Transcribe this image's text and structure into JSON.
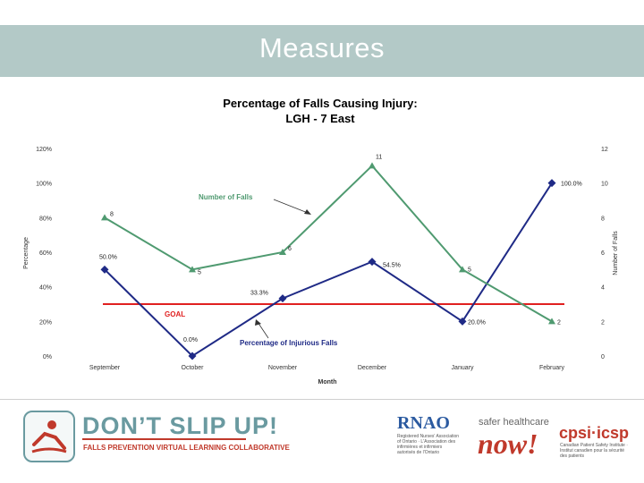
{
  "slide": {
    "title": "Measures"
  },
  "chart_data": {
    "type": "line",
    "title": "Percentage of Falls Causing Injury: LGH - 7 East",
    "title_lines": [
      "Percentage of Falls Causing Injury:",
      "LGH - 7 East"
    ],
    "xlabel": "Month",
    "ylabel_left": "Percentage",
    "ylabel_right": "Number of Falls",
    "categories": [
      "September",
      "October",
      "November",
      "December",
      "January",
      "February"
    ],
    "left_axis": {
      "ticks": [
        "0%",
        "20%",
        "40%",
        "60%",
        "80%",
        "100%",
        "120%"
      ],
      "range": [
        0,
        120
      ]
    },
    "right_axis": {
      "ticks": [
        "0",
        "2",
        "4",
        "6",
        "8",
        "10",
        "12"
      ],
      "range": [
        0,
        12
      ]
    },
    "grid": false,
    "series": [
      {
        "name": "Percentage of Injurious Falls",
        "axis": "left",
        "color": "#1f2a86",
        "marker": "diamond",
        "values": [
          50.0,
          0.0,
          33.3,
          54.5,
          20.0,
          100.0
        ],
        "labels": [
          "50.0%",
          "0.0%",
          "33.3%",
          "54.5%",
          "20.0%",
          "100.0%"
        ]
      },
      {
        "name": "Number of Falls",
        "axis": "right",
        "color": "#4f9a70",
        "marker": "triangle",
        "values": [
          8,
          5,
          6,
          11,
          5,
          2
        ],
        "labels": [
          "8",
          "5",
          "6",
          "11",
          "5",
          "2"
        ]
      }
    ],
    "goal": {
      "label": "GOAL",
      "value": 30,
      "axis": "left",
      "color": "#e02020"
    },
    "annotations": [
      {
        "text": "Number of Falls",
        "series": 1,
        "color": "#4f9a70"
      },
      {
        "text": "Percentage of Injurious Falls",
        "series": 0,
        "color": "#1f2a86"
      }
    ]
  },
  "footer": {
    "logo_title": "DON’T SLIP UP!",
    "logo_subtitle": "FALLS PREVENTION VIRTUAL LEARNING COLLABORATIVE",
    "rnao": "RNAO",
    "rnao_sub": "Registered Nurses' Association of Ontario · L'Association des infirmières et infirmiers autorisés de l'Ontario",
    "shc_line": "safer healthcare",
    "shc_now": "now!",
    "cpsi": "cpsi·icsp",
    "cpsi_sub": "Canadian Patient Safety Institute · Institut canadien pour la sécurité des patients"
  }
}
